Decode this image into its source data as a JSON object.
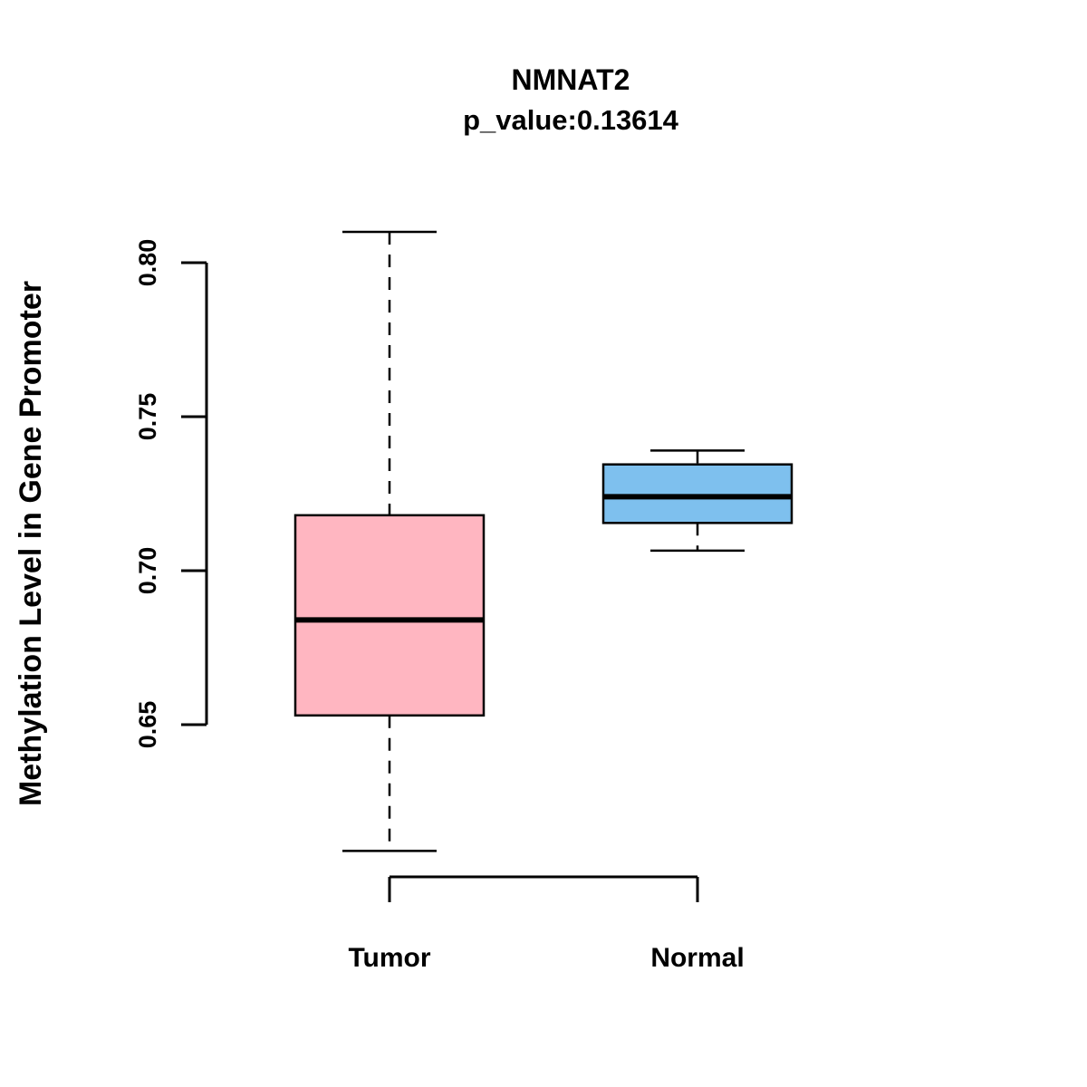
{
  "chart_data": {
    "type": "boxplot",
    "title": "NMNAT2",
    "subtitle": "p_value:0.13614",
    "ylabel": "Methylation Level in Gene Promoter",
    "xlabel": "",
    "categories": [
      "Tumor",
      "Normal"
    ],
    "ytick_values": [
      0.65,
      0.7,
      0.75,
      0.8
    ],
    "ytick_labels": [
      "0.65",
      "0.70",
      "0.75",
      "0.80"
    ],
    "ylim": [
      0.6,
      0.815
    ],
    "grid": false,
    "legend": "none",
    "groups": [
      {
        "label": "Tumor",
        "fill": "#FFB6C1",
        "whisker_low": 0.609,
        "q1": 0.653,
        "median": 0.684,
        "q3": 0.718,
        "whisker_high": 0.81
      },
      {
        "label": "Normal",
        "fill": "#7EC0EE",
        "whisker_low": 0.7065,
        "q1": 0.7155,
        "median": 0.724,
        "q3": 0.7345,
        "whisker_high": 0.739
      }
    ],
    "colors": {
      "stroke": "#000000",
      "background": "#ffffff"
    }
  }
}
